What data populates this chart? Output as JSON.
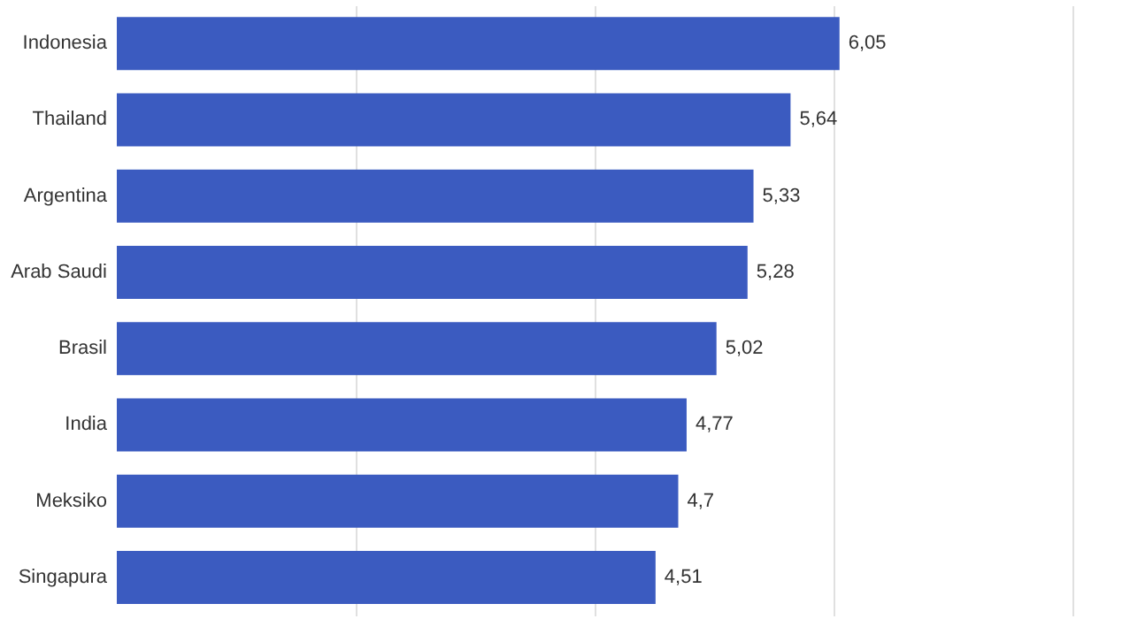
{
  "chart_data": {
    "type": "bar",
    "orientation": "horizontal",
    "categories": [
      "Indonesia",
      "Thailand",
      "Argentina",
      "Arab Saudi",
      "Brasil",
      "India",
      "Meksiko",
      "Singapura"
    ],
    "values": [
      6.05,
      5.64,
      5.33,
      5.28,
      5.02,
      4.77,
      4.7,
      4.51
    ],
    "color": "#3b5bc0",
    "xlim": [
      0,
      8
    ],
    "xticks": [
      {
        "value": 2,
        "label": null
      },
      {
        "value": 4,
        "label": null
      },
      {
        "value": 6,
        "label": null
      },
      {
        "value": 8,
        "label": null
      }
    ],
    "value_labels": [
      "6,05",
      "5,64",
      "5,33",
      "5,28",
      "5,02",
      "4,77",
      "4,7",
      "4,51"
    ],
    "grid": "x",
    "tick_labels": "y"
  }
}
